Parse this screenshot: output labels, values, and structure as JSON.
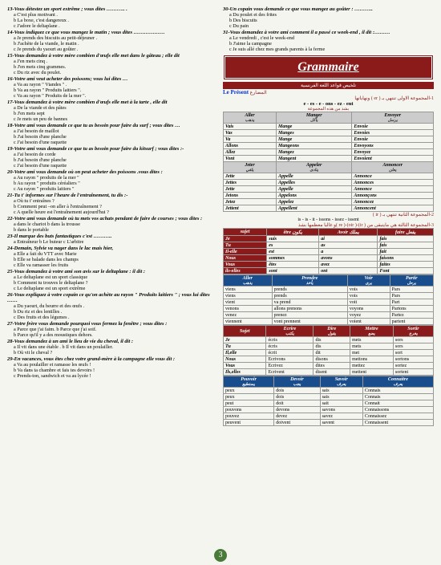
{
  "left_questions": [
    {
      "n": "13",
      "head": "Vous détestez un sport extrême ; vous dites ……….. .",
      "opts": [
        "C'est plus motivant .",
        "La boxe, c'est dangereux .",
        "J'adore le deltaplane ."
      ]
    },
    {
      "n": "14",
      "head": "Vous indiquez ce que vous mangez le matin ; vous dites ………………",
      "opts": [
        "Je prends des biscuits au petit-déjeuner .",
        "J'achète de la viande, le matin .",
        "Je prends du yaourt au goûter ."
      ]
    },
    {
      "n": "15",
      "head": "Vous demandez à votre mère combien d'œufs elle met dans le gâteau ; elle dit",
      "opts": [
        "J'en mets cinq .",
        "J'en mets cinq grammes.",
        "Du riz avec du poulet."
      ]
    },
    {
      "n": "16",
      "head": "Votre ami veut acheter des poissons; vous lui dites …",
      "opts": [
        "Va au rayon \" Viandes \" .",
        "Va au rayon \" Produits laitiers \".",
        "Va au rayon \" Produits de la mer \"."
      ]
    },
    {
      "n": "17",
      "head": "Vous demandez à votre mère combien d'œufs elle met à la tarte , elle dit",
      "opts": [
        "De la viande et des pâtes",
        "J'en mets sept",
        "Je mets un peu de bannes"
      ]
    },
    {
      "n": "18",
      "head": "Votre ami vous demande ce que tu as besoin pour faire du surf ; vous dites …",
      "opts": [
        "J'ai besoin de maillot",
        "J'ai besoin d'une planche",
        "J'ai besoin d'une raquette"
      ]
    },
    {
      "n": "19",
      "head": "Votre ami vous demande ce que tu as besoin pour faire du kitsurf ; vous dites :-",
      "opts": [
        "J'ai besoin de corde",
        "J'ai besoin d'une planche",
        "J'ai besoin d'une raquette"
      ]
    },
    {
      "n": "20",
      "head": "Votre ami vous demande où on peut acheter des poissons .vous dites :",
      "opts": [
        "Au rayon \" produits de la mer \"",
        "Au rayon \" produits céréaliers \"",
        "Au rayon \" produits laitiers \""
      ]
    },
    {
      "n": "21",
      "head": "Tu t' informes sur l'heure de l'entraînement, tu dis :-",
      "opts": [
        "Où tu t' entraînes ?",
        "Comment peut –on aller à l'entraînement ?",
        "A quelle heure est l'entraînement aujourd'hui ?"
      ]
    },
    {
      "n": "22",
      "head": "Votre ami vous demande où tu mets vos achats pendant de faire de courses ; vous dites :",
      "opts": [
        "dans le chariot          b   dans la trousse",
        "dans le portable"
      ]
    },
    {
      "n": "23",
      "head": "Il marque des buts fantastiques c'est ………..",
      "opts": [
        "Entraîneur        b   Le buteur       c   L'arbitre"
      ]
    },
    {
      "n": "24",
      "head": "Demain, Sylvie va nager dans le lac mais hier,",
      "opts": [
        "Elle a fait du VTT avec Marie",
        "Elle se balade dans les champs",
        "Elle va ramasser les fruits"
      ]
    },
    {
      "n": "25",
      "head": "Vous demandez à votre ami son avis sur le deltaplane : il dit :",
      "opts": [
        "Le deltaplane est un sport classique",
        "Comment tu trouves le deltaplane ?",
        "Le deltaplane est un sport extrême"
      ]
    },
    {
      "n": "26",
      "head": "Vous expliquez à votre copain ce qu'on achète au rayon \" Produits laitiers \" ; vous lui dites ……",
      "opts": [
        "Du yaourt, du beurre et des œufs .",
        "Du riz et des lentilles .",
        "Des fruits et des légumes ."
      ]
    },
    {
      "n": "27",
      "head": "Votre frère vous demande pourquoi vous fermez la fenêtre ; vous dites :",
      "opts": [
        "Parce que j'ai faim.         b  Parce que j'ai soif.",
        "Parce qu'il y a des moustiques dehors."
      ]
    },
    {
      "n": "28",
      "head": "Vous demandez à un ami le lieu de vie du cheval, il dit :",
      "opts": [
        "Il vit dans une étable .      b  Il vit dans un poulailler.",
        "Où vit le cheval ?"
      ]
    },
    {
      "n": "29",
      "head": "En vacances, vous êtes chez votre grand-mère à la campagne elle vous dit :",
      "opts": [
        "Va au poulailler et ramasse les œufs !",
        "Va dans ta chambre et fais tes devoirs !",
        "Prends-ton, sandwich et va au lycée !"
      ]
    }
  ],
  "right_questions": [
    {
      "n": "30",
      "head": "Un copain vous demande ce que vous mangez au goûter : ………..",
      "opts": [
        "Du poulet et des frites",
        "Des biscuits",
        "Du pain"
      ]
    },
    {
      "n": "31",
      "head": "Vous demandez à votre ami comment il a passé ce week-end , il dit :………",
      "opts": [
        "Le vendredi , c'est le week-end",
        "J'aime la campagne",
        "Je suis allé chez mes grands parents à la ferme"
      ]
    }
  ],
  "grammar": {
    "banner": "Grammaire",
    "arabic_bar": "تلخيص قواعد اللغة الفرنسية",
    "present_fr": "Le Présent",
    "present_ar": "المضارع",
    "group1_ar": "1-المجموعة الاولى تنتهي بـ ( er ) ونهاياتها",
    "group1_endings": "e - es - e - ons - ez - ent",
    "group1_ar2": "بشذ من هذه المجموعة",
    "group2_ar": "2-المجموعة الثانية تنتهي بـ ( ir )",
    "group2_endings": "is - is - it - issons - issez - issent",
    "group3_ar": "3-المجموعة الثالثة هي مايتبقى من ( ir)-( oir)-( re )و غالبا معظمها بشذ"
  },
  "table1": {
    "headers": [
      [
        "Aller",
        "يذهب"
      ],
      [
        "Manger",
        "يأكل"
      ],
      [
        "Envoyer",
        "يرسل"
      ]
    ],
    "rows": [
      [
        "Vais",
        "Mange",
        "Envoie"
      ],
      [
        "Vas",
        "Manges",
        "Envoies"
      ],
      [
        "Va",
        "Mange",
        "Envoie"
      ],
      [
        "Allons",
        "Mangeons",
        "Envoyons"
      ],
      [
        "Allez",
        "Mangez",
        "Envoyez"
      ],
      [
        "Vont",
        "Mangent",
        "Envoient"
      ]
    ],
    "headers2": [
      [
        "Jeter",
        "يلقي"
      ],
      [
        "Appeler",
        "ينادى"
      ],
      [
        "Annoncer",
        "يعلن"
      ]
    ],
    "rows2": [
      [
        "Jette",
        "Appelle",
        "Annonce"
      ],
      [
        "Jettes",
        "Appelles",
        "Annonces"
      ],
      [
        "Jette",
        "Appelle",
        "Annonce"
      ],
      [
        "Jetons",
        "Appelons",
        "Annonçons"
      ],
      [
        "Jetez",
        "Appelez",
        "Annoncez"
      ],
      [
        "Jettent",
        "Appellent",
        "Annoncent"
      ]
    ]
  },
  "table_avoir": {
    "headers": [
      "sujet",
      "être يكون",
      "Avoir يملك",
      "faire يفعل"
    ],
    "rows": [
      [
        "Je",
        "suis",
        "ai",
        "fais"
      ],
      [
        "Tu",
        "es",
        "as",
        "fais"
      ],
      [
        "Il-elle",
        "est",
        "a",
        "fait"
      ],
      [
        "Nous",
        "sommes",
        "avons",
        "faisons"
      ],
      [
        "Vous",
        "êtes",
        "avez",
        "faites"
      ],
      [
        "ils-elles",
        "sont",
        "ont",
        "Font"
      ]
    ]
  },
  "table_go": {
    "headers": [
      [
        "Aller",
        "يذهب"
      ],
      [
        "Prendre",
        "يأخذ"
      ],
      [
        "Voir",
        "يرى"
      ],
      [
        "Partir",
        "يرحل"
      ]
    ],
    "rows": [
      [
        "viens",
        "prends",
        "vois",
        "Pars"
      ],
      [
        "viens",
        "prends",
        "vois",
        "Pars"
      ],
      [
        "vient",
        "va prend",
        "voit",
        "Part"
      ],
      [
        "venons",
        "allons prenons",
        "voyons",
        "Partons"
      ],
      [
        "venez",
        "prenez",
        "voyez",
        "Partez"
      ],
      [
        "viennent",
        "vont prennent",
        "voient",
        "partent"
      ]
    ]
  },
  "table_write": {
    "headers": [
      [
        "Sujet",
        ""
      ],
      [
        "Ecrire",
        "يكتب"
      ],
      [
        "Dire",
        "يقول"
      ],
      [
        "Mettre",
        "يضع"
      ],
      [
        "Sortir",
        "يخرج"
      ]
    ],
    "rows": [
      [
        "Je",
        "écris",
        "dis",
        "mets",
        "sors"
      ],
      [
        "Tu",
        "écris",
        "dis",
        "mets",
        "sors"
      ],
      [
        "Il,elle",
        "écrit",
        "dit",
        "met",
        "sort"
      ],
      [
        "Nous",
        "Ecrivons",
        "disons",
        "mettons",
        "sortons"
      ],
      [
        "Vous",
        "Ecrivez",
        "dites",
        "mettez",
        "sortez"
      ],
      [
        "Ils,elles",
        "Ecrivent",
        "disent",
        "mettent",
        "sortent"
      ]
    ]
  },
  "table_can": {
    "headers": [
      [
        "Pouvoir",
        "يستطيع"
      ],
      [
        "Devoir",
        "يجب"
      ],
      [
        "Savoir",
        "يعرف"
      ],
      [
        "Connaitre",
        "يعرف"
      ]
    ],
    "rows": [
      [
        "peux",
        "dois",
        "sais",
        "Connais"
      ],
      [
        "peux",
        "dois",
        "sais",
        "Connais"
      ],
      [
        "peut",
        "doit",
        "sait",
        "Connait"
      ],
      [
        "pouvons",
        "devons",
        "savons",
        "Connaissons"
      ],
      [
        "pouvez",
        "devez",
        "savez",
        "Connaissez"
      ],
      [
        "peuvent",
        "doivent",
        "savent",
        "Connaissent"
      ]
    ]
  },
  "pagenum": "3"
}
